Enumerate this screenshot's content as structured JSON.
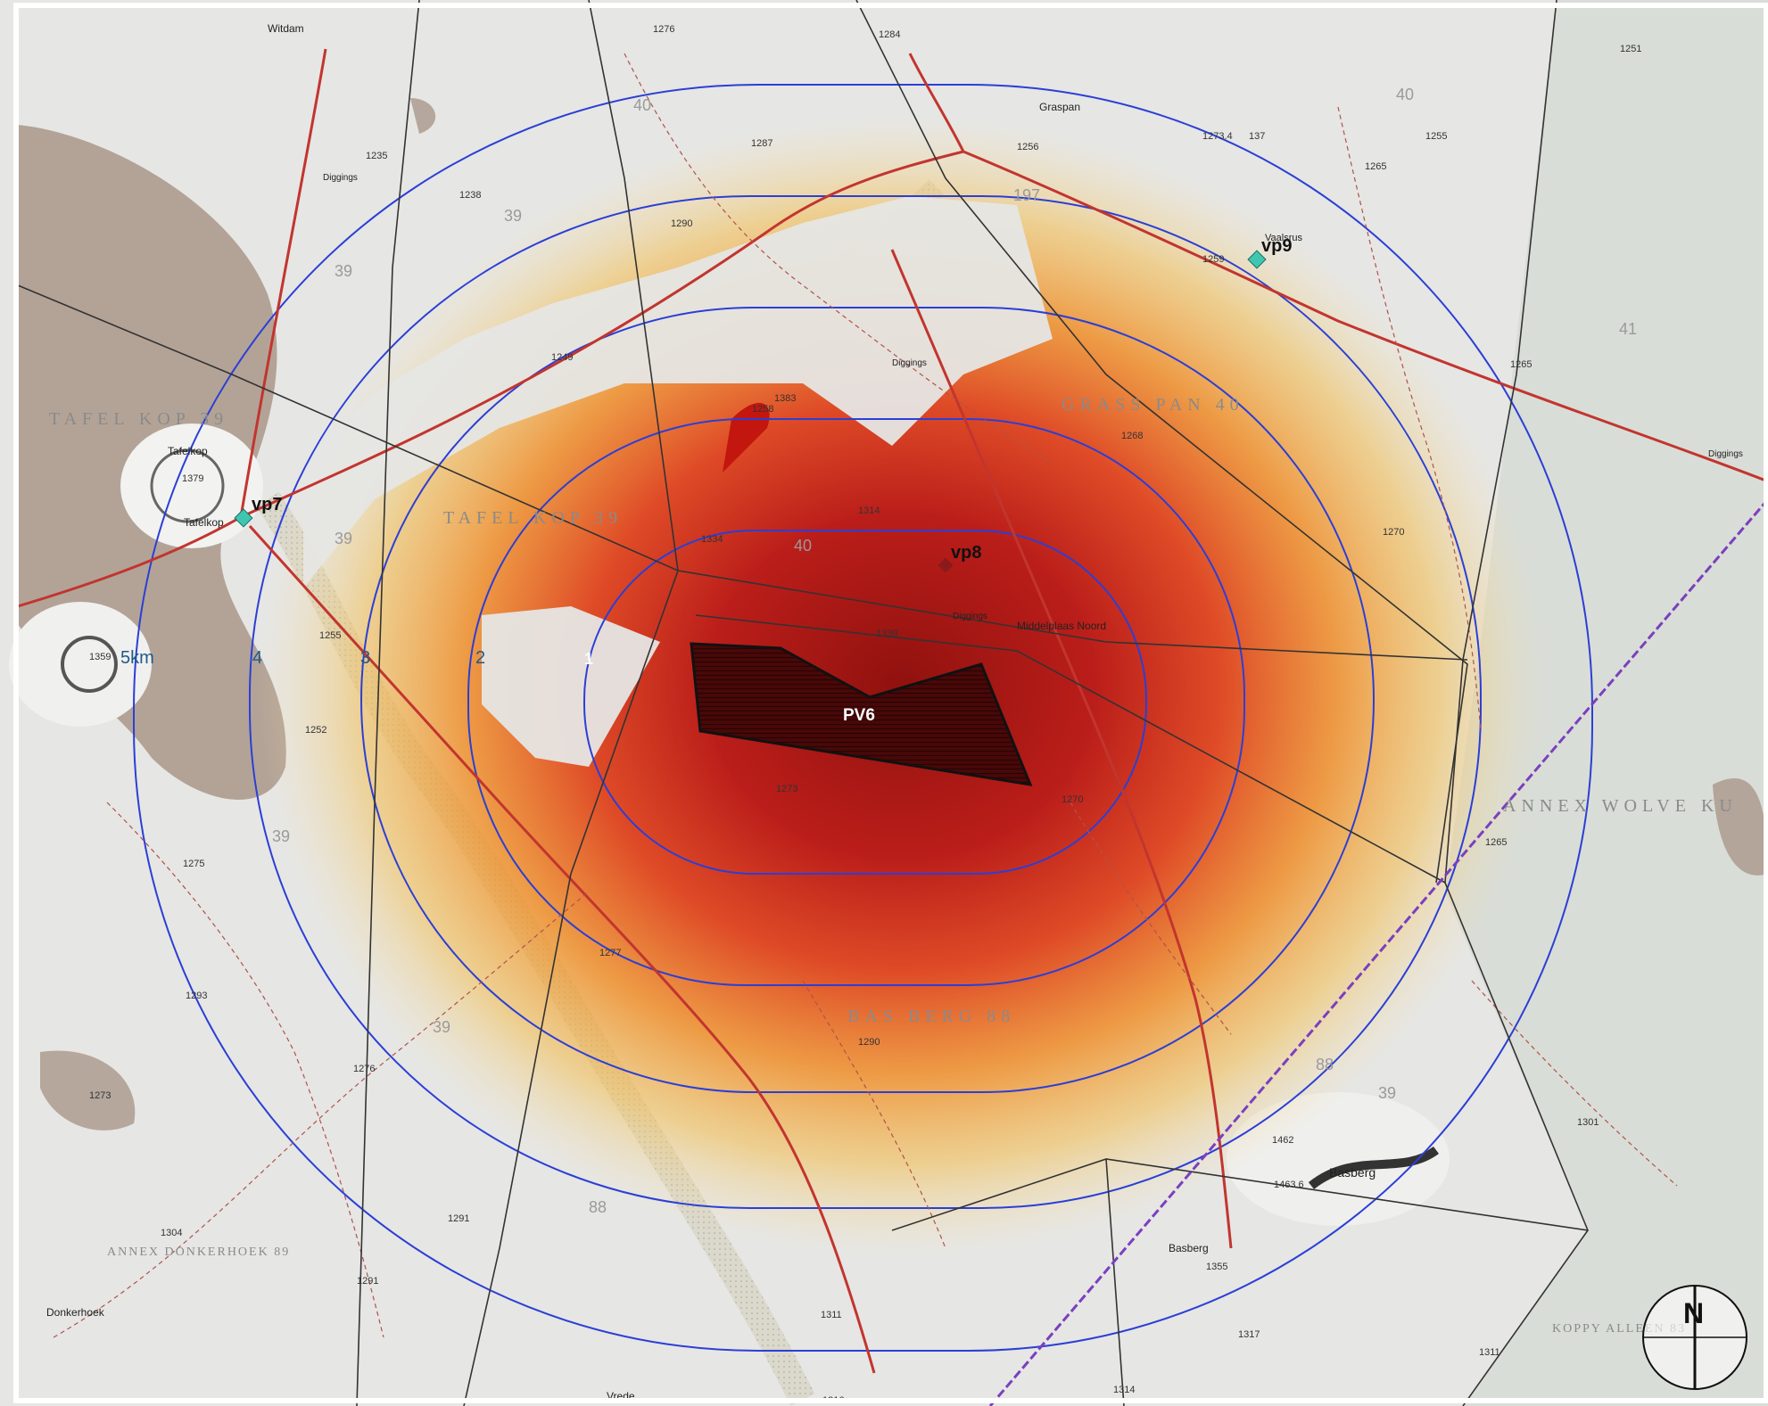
{
  "site": {
    "label": "PV6"
  },
  "viewpoints": [
    {
      "id": "vp7",
      "label": "vp7",
      "color": "#3fc6b0"
    },
    {
      "id": "vp8",
      "label": "vp8",
      "color": "#8b1a1a"
    },
    {
      "id": "vp9",
      "label": "vp9",
      "color": "#3fc6b0"
    }
  ],
  "rings": [
    "1",
    "2",
    "3",
    "4",
    "5km"
  ],
  "farm_labels": [
    "TAFEL KOP 39",
    "TAFEL KOP 39",
    "GRASS PAN 40",
    "BAS BERG 88",
    "ANNEX WOLVE KU",
    "ANNEX DONKERHOEK 89",
    "KOPPY ALLEEN 83"
  ],
  "farm_numbers": [
    "40",
    "40",
    "39",
    "39",
    "39",
    "39",
    "39",
    "39",
    "41",
    "197",
    "88",
    "88",
    "40"
  ],
  "place_names": [
    "Witdam",
    "Tafelkop",
    "Tafelkop",
    "Graspan",
    "Basberg",
    "Basberg",
    "Donkerhoek",
    "Vrede",
    "Middelplaas Noord",
    "Diggings",
    "Diggings",
    "Diggings",
    "Diggings",
    "Vaalsrus"
  ],
  "spot_heights": [
    "1276",
    "1284",
    "1287",
    "1235",
    "1238",
    "1290",
    "1256",
    "1273.4",
    "137",
    "1255",
    "1265",
    "1251",
    "1259",
    "1249",
    "1265",
    "1268",
    "1270",
    "1334",
    "1314",
    "1339",
    "1255",
    "1252",
    "1273",
    "1270",
    "1265",
    "1275",
    "1277",
    "1290",
    "1293",
    "1276",
    "1273",
    "1304",
    "1291",
    "1291",
    "1311",
    "1317",
    "1355",
    "1314",
    "1316",
    "1311",
    "1301",
    "1462",
    "1463.6",
    "1359",
    "1379",
    "1258",
    "1383"
  ],
  "legend": {
    "north_label": "N"
  },
  "colors": {
    "map_bg": "#e6e6e4",
    "ring_line": "#2b3fd6",
    "road": "#c2352f",
    "boundary": "#333333",
    "powerline": "#7a3fbf",
    "site_fill": "#5a0c0c",
    "hill": "#a08e7f"
  }
}
